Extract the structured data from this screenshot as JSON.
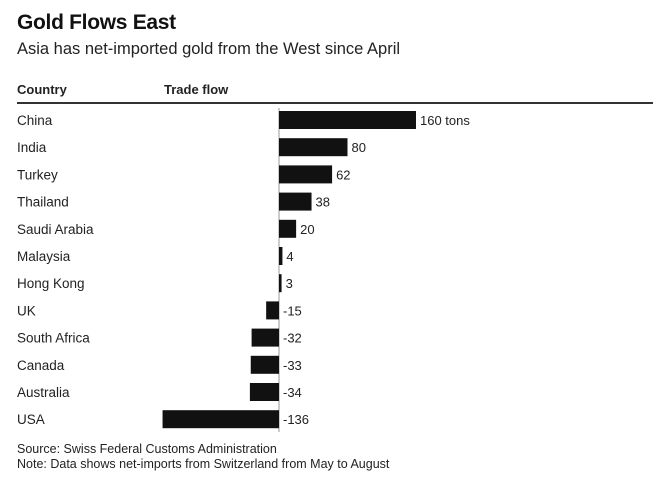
{
  "chart_data": {
    "type": "bar",
    "orientation": "horizontal",
    "title": "Gold Flows East",
    "subtitle": "Asia has net-imported gold from the West since April",
    "column_headers": [
      "Country",
      "Trade flow"
    ],
    "categories": [
      "China",
      "India",
      "Turkey",
      "Thailand",
      "Saudi Arabia",
      "Malaysia",
      "Hong Kong",
      "UK",
      "South Africa",
      "Canada",
      "Australia",
      "USA"
    ],
    "values": [
      160,
      80,
      62,
      38,
      20,
      4,
      3,
      -15,
      -32,
      -33,
      -34,
      -136
    ],
    "value_labels": [
      "160 tons",
      "80",
      "62",
      "38",
      "20",
      "4",
      "3",
      "-15",
      "-32",
      "-33",
      "-34",
      "-136"
    ],
    "xlim": [
      -136,
      160
    ],
    "bar_color": "#111111",
    "grid": false,
    "legend": "none"
  },
  "footer": {
    "source": "Source: Swiss Federal Customs Administration",
    "note": "Note: Data shows net-imports from Switzerland from May to August"
  }
}
